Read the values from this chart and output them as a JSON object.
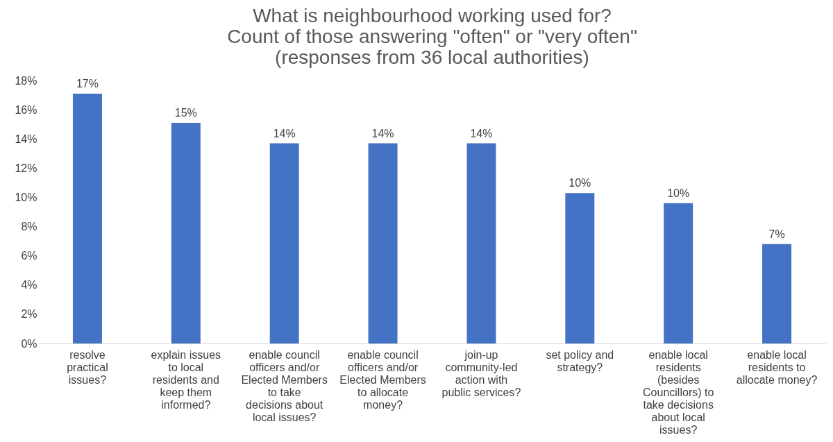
{
  "chart_data": {
    "type": "bar",
    "title": [
      "What is neighbourhood working used for?",
      "Count of those answering \"often\" or \"very often\"",
      "(responses from 36 local authorities)"
    ],
    "categories": [
      "resolve practical issues?",
      "explain issues to local residents and keep them informed?",
      "enable council officers and/or Elected Members to take decisions about local issues?",
      "enable council officers and/or Elected Members to allocate money?",
      "join-up community-led action with public services?",
      "set policy and strategy?",
      "enable local residents (besides Councillors) to take decisions about local issues?",
      "enable local residents to allocate money?"
    ],
    "values": [
      17.1,
      15.1,
      13.7,
      13.7,
      13.7,
      10.3,
      9.6,
      6.8
    ],
    "value_labels": [
      "17%",
      "15%",
      "14%",
      "14%",
      "14%",
      "10%",
      "10%",
      "7%"
    ],
    "color": "#4472c4",
    "ylim": [
      0,
      18
    ],
    "yticks": [
      {
        "value": 0,
        "label": "0%"
      },
      {
        "value": 2,
        "label": "2%"
      },
      {
        "value": 4,
        "label": "4%"
      },
      {
        "value": 6,
        "label": "6%"
      },
      {
        "value": 8,
        "label": "8%"
      },
      {
        "value": 10,
        "label": "10%"
      },
      {
        "value": 12,
        "label": "12%"
      },
      {
        "value": 14,
        "label": "14%"
      },
      {
        "value": 16,
        "label": "16%"
      },
      {
        "value": 18,
        "label": "18%"
      }
    ],
    "grid": false
  }
}
